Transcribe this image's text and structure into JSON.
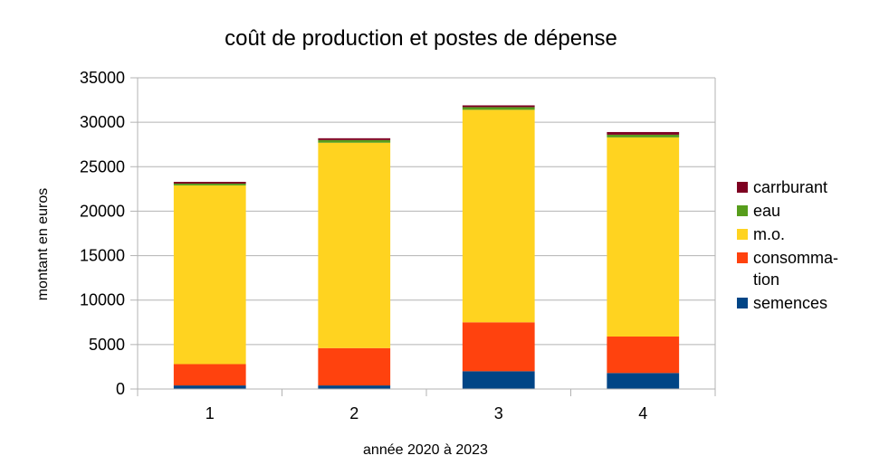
{
  "chart_data": {
    "type": "bar",
    "stacked": true,
    "title": "coût de production et postes de dépense",
    "xlabel": "année 2020 à 2023",
    "ylabel": "montant en euros",
    "categories": [
      "1",
      "2",
      "3",
      "4"
    ],
    "ylim": [
      0,
      35000
    ],
    "yticks": [
      0,
      5000,
      10000,
      15000,
      20000,
      25000,
      30000,
      35000
    ],
    "grid": true,
    "legend_position": "right",
    "series": [
      {
        "name": "semences",
        "color": "#004586",
        "values": [
          400,
          400,
          2000,
          1800
        ]
      },
      {
        "name": "consommation",
        "color": "#ff420e",
        "values": [
          2400,
          4200,
          5500,
          4100
        ]
      },
      {
        "name": "m.o.",
        "color": "#ffd320",
        "values": [
          20100,
          23100,
          23900,
          22400
        ]
      },
      {
        "name": "eau",
        "color": "#579d1c",
        "values": [
          200,
          300,
          300,
          300
        ]
      },
      {
        "name": "carrburant",
        "color": "#7e0021",
        "values": [
          200,
          200,
          200,
          300
        ]
      }
    ],
    "legend_labels": [
      {
        "series": 4,
        "lines": [
          "carrburant"
        ]
      },
      {
        "series": 3,
        "lines": [
          "eau"
        ]
      },
      {
        "series": 2,
        "lines": [
          "m.o."
        ]
      },
      {
        "series": 1,
        "lines": [
          "consomma-",
          "tion"
        ]
      },
      {
        "series": 0,
        "lines": [
          "semences"
        ]
      }
    ]
  }
}
